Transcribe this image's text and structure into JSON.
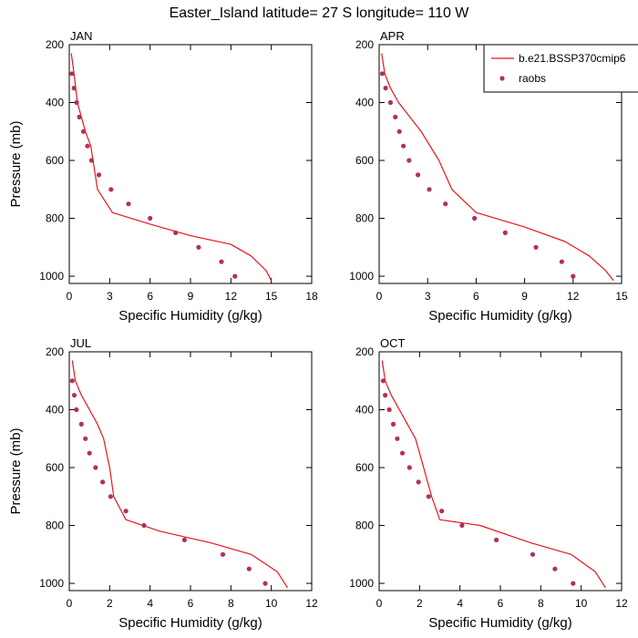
{
  "title": "Easter_Island  latitude= 27 S longitude= 110 W",
  "colors": {
    "model": "#e8161b",
    "obs": "#b03060",
    "axes": "#000000"
  },
  "legend": {
    "model_label": "b.e21.BSSP370cmip6",
    "obs_label": "raobs"
  },
  "chart_data": [
    {
      "type": "line",
      "panel": "JAN",
      "xlabel": "Specific Humidity (g/kg)",
      "ylabel": "Pressure (mb)",
      "xlim": [
        0,
        18
      ],
      "xticks": [
        0,
        3,
        6,
        9,
        12,
        15,
        18
      ],
      "ylim": [
        1025,
        200
      ],
      "yticks": [
        200,
        400,
        600,
        800,
        1000
      ],
      "series": [
        {
          "name": "b.e21.BSSP370cmip6",
          "style": "line",
          "x": [
            0.15,
            0.35,
            0.6,
            0.9,
            1.2,
            1.6,
            2.1,
            3.2,
            6.0,
            9.0,
            12.0,
            13.5,
            14.6,
            15.0
          ],
          "y": [
            230,
            300,
            400,
            450,
            500,
            550,
            700,
            780,
            820,
            860,
            890,
            930,
            980,
            1015
          ]
        },
        {
          "name": "raobs",
          "style": "markers",
          "x": [
            0.2,
            0.35,
            0.55,
            0.75,
            1.05,
            1.35,
            1.65,
            2.2,
            3.1,
            4.4,
            6.0,
            7.9,
            9.6,
            11.3,
            12.3
          ],
          "y": [
            300,
            350,
            400,
            450,
            500,
            550,
            600,
            650,
            700,
            750,
            800,
            850,
            900,
            950,
            1000
          ]
        }
      ]
    },
    {
      "type": "line",
      "panel": "APR",
      "xlabel": "Specific Humidity (g/kg)",
      "ylabel": "",
      "xlim": [
        0,
        15
      ],
      "xticks": [
        0,
        3,
        6,
        9,
        12,
        15
      ],
      "ylim": [
        1025,
        200
      ],
      "yticks": [
        200,
        400,
        600,
        800,
        1000
      ],
      "series": [
        {
          "name": "b.e21.BSSP370cmip6",
          "style": "line",
          "x": [
            0.15,
            0.35,
            0.7,
            1.2,
            1.9,
            2.6,
            3.7,
            4.5,
            6.0,
            9.0,
            11.5,
            13.0,
            14.0,
            14.5
          ],
          "y": [
            230,
            300,
            350,
            400,
            450,
            500,
            600,
            700,
            780,
            830,
            880,
            930,
            980,
            1015
          ]
        },
        {
          "name": "raobs",
          "style": "markers",
          "x": [
            0.2,
            0.4,
            0.7,
            1.0,
            1.25,
            1.5,
            1.85,
            2.4,
            3.1,
            4.1,
            5.9,
            7.8,
            9.7,
            11.3,
            12.0
          ],
          "y": [
            300,
            350,
            400,
            450,
            500,
            550,
            600,
            650,
            700,
            750,
            800,
            850,
            900,
            950,
            1000
          ]
        }
      ]
    },
    {
      "type": "line",
      "panel": "JUL",
      "xlabel": "Specific Humidity (g/kg)",
      "ylabel": "Pressure (mb)",
      "xlim": [
        0,
        12
      ],
      "xticks": [
        0,
        2,
        4,
        6,
        8,
        10,
        12
      ],
      "ylim": [
        1025,
        200
      ],
      "yticks": [
        200,
        400,
        600,
        800,
        1000
      ],
      "series": [
        {
          "name": "b.e21.BSSP370cmip6",
          "style": "line",
          "x": [
            0.15,
            0.3,
            0.6,
            1.0,
            1.4,
            1.7,
            2.0,
            2.2,
            2.8,
            4.5,
            7.0,
            9.0,
            10.3,
            10.8
          ],
          "y": [
            230,
            300,
            350,
            400,
            450,
            500,
            600,
            700,
            780,
            820,
            860,
            900,
            960,
            1015
          ]
        },
        {
          "name": "raobs",
          "style": "markers",
          "x": [
            0.15,
            0.25,
            0.35,
            0.6,
            0.8,
            1.0,
            1.3,
            1.65,
            2.05,
            2.8,
            3.7,
            5.7,
            7.6,
            8.9,
            9.7
          ],
          "y": [
            300,
            350,
            400,
            450,
            500,
            550,
            600,
            650,
            700,
            750,
            800,
            850,
            900,
            950,
            1000
          ]
        }
      ]
    },
    {
      "type": "line",
      "panel": "OCT",
      "xlabel": "Specific Humidity (g/kg)",
      "ylabel": "",
      "xlim": [
        0,
        12
      ],
      "xticks": [
        0,
        2,
        4,
        6,
        8,
        10,
        12
      ],
      "ylim": [
        1025,
        200
      ],
      "yticks": [
        200,
        400,
        600,
        800,
        1000
      ],
      "series": [
        {
          "name": "b.e21.BSSP370cmip6",
          "style": "line",
          "x": [
            0.15,
            0.3,
            0.6,
            1.0,
            1.4,
            1.8,
            2.2,
            2.6,
            3.0,
            5.0,
            7.5,
            9.5,
            10.7,
            11.2
          ],
          "y": [
            230,
            300,
            350,
            400,
            450,
            500,
            600,
            700,
            780,
            800,
            860,
            900,
            960,
            1015
          ]
        },
        {
          "name": "raobs",
          "style": "markers",
          "x": [
            0.2,
            0.3,
            0.5,
            0.7,
            0.9,
            1.15,
            1.5,
            1.95,
            2.45,
            3.1,
            4.1,
            5.8,
            7.6,
            8.7,
            9.6
          ],
          "y": [
            300,
            350,
            400,
            450,
            500,
            550,
            600,
            650,
            700,
            750,
            800,
            850,
            900,
            950,
            1000
          ]
        }
      ]
    }
  ]
}
